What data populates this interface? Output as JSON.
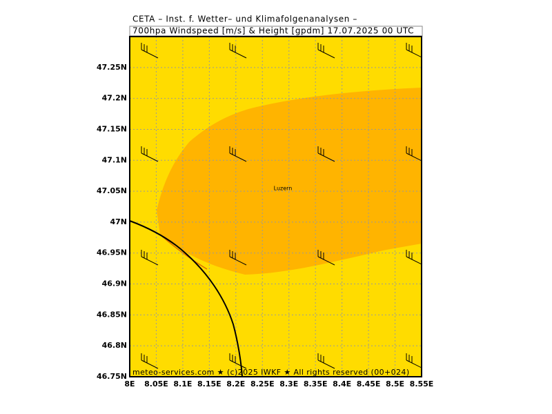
{
  "header": {
    "lines": [
      "CETA – Inst. f. Wetter– und Klimafolgenanalysen –",
      "700hpa Windspeed [m/s] & Height [gpdm] 17.07.2025 00 UTC"
    ]
  },
  "map": {
    "xlim": [
      8,
      8.55
    ],
    "ylim": [
      46.75,
      47.3
    ],
    "xticks": [
      {
        "value": 8,
        "label": "8E"
      },
      {
        "value": 8.05,
        "label": "8.05E"
      },
      {
        "value": 8.1,
        "label": "8.1E"
      },
      {
        "value": 8.15,
        "label": "8.15E"
      },
      {
        "value": 8.2,
        "label": "8.2E"
      },
      {
        "value": 8.25,
        "label": "8.25E"
      },
      {
        "value": 8.3,
        "label": "8.3E"
      },
      {
        "value": 8.35,
        "label": "8.35E"
      },
      {
        "value": 8.4,
        "label": "8.4E"
      },
      {
        "value": 8.45,
        "label": "8.45E"
      },
      {
        "value": 8.5,
        "label": "8.5E"
      },
      {
        "value": 8.55,
        "label": "8.55E"
      }
    ],
    "yticks": [
      {
        "value": 46.75,
        "label": "46.75N"
      },
      {
        "value": 46.8,
        "label": "46.8N"
      },
      {
        "value": 46.85,
        "label": "46.85N"
      },
      {
        "value": 46.9,
        "label": "46.9N"
      },
      {
        "value": 46.95,
        "label": "46.95N"
      },
      {
        "value": 47,
        "label": "47N"
      },
      {
        "value": 47.05,
        "label": "47.05N"
      },
      {
        "value": 47.1,
        "label": "47.1N"
      },
      {
        "value": 47.15,
        "label": "47.15N"
      },
      {
        "value": 47.2,
        "label": "47.2N"
      },
      {
        "value": 47.25,
        "label": "47.25N"
      }
    ],
    "place": "Luzern",
    "footer": "meteo-services.com ★ (c)2025 IWKF ★ All rights reserved (00+024)"
  }
}
